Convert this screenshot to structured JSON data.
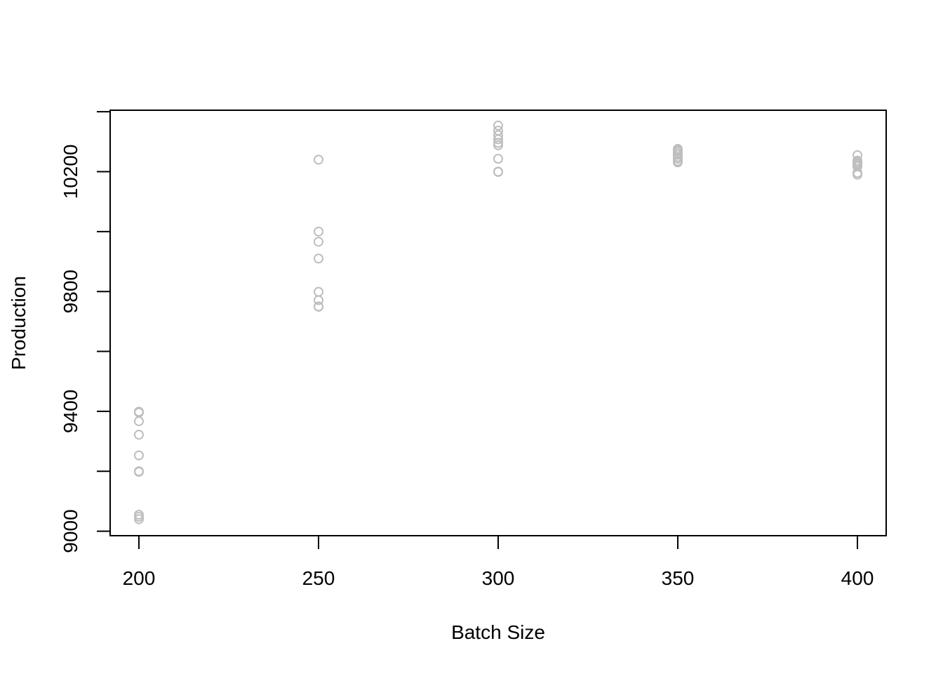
{
  "chart_data": {
    "type": "scatter",
    "title": "",
    "xlabel": "Batch Size",
    "ylabel": "Production",
    "xlim": [
      192,
      408
    ],
    "ylim": [
      8985,
      10405
    ],
    "x_ticks": [
      200,
      250,
      300,
      350,
      400
    ],
    "y_ticks": [
      9000,
      9400,
      9800,
      10200
    ],
    "y_minor_ticks": [
      9200,
      9600,
      10000,
      10400
    ],
    "grid": false,
    "legend": "none",
    "point_color": "#BEBEBE",
    "series": [
      {
        "x": [
          200,
          200,
          200,
          200,
          200,
          200,
          200,
          200,
          200,
          200,
          250,
          250,
          250,
          250,
          250,
          250,
          250,
          250,
          300,
          300,
          300,
          300,
          300,
          300,
          300,
          300,
          300,
          350,
          350,
          350,
          350,
          350,
          350,
          350,
          350,
          350,
          400,
          400,
          400,
          400,
          400,
          400,
          400,
          400
        ],
        "y": [
          9399,
          9396,
          9367,
          9322,
          9253,
          9200,
          9198,
          9055,
          9048,
          9040,
          10240,
          10000,
          9966,
          9910,
          9799,
          9771,
          9750,
          9749,
          10354,
          10337,
          10322,
          10308,
          10296,
          10288,
          10243,
          10200,
          10199,
          10276,
          10273,
          10268,
          10262,
          10256,
          10249,
          10243,
          10235,
          10231,
          10255,
          10237,
          10232,
          10227,
          10222,
          10217,
          10196,
          10190
        ]
      }
    ]
  }
}
